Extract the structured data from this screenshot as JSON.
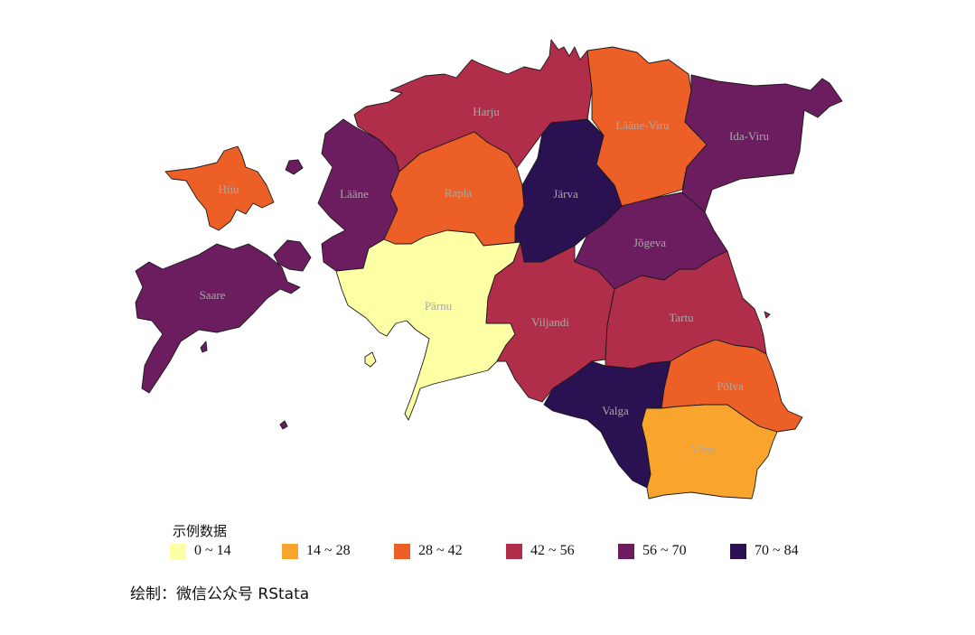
{
  "legend": {
    "title": "示例数据",
    "items": [
      {
        "label": "0 ~ 14",
        "color": "#FCFFA4"
      },
      {
        "label": "14 ~ 28",
        "color": "#F9A52D"
      },
      {
        "label": "28 ~ 42",
        "color": "#EC5F27"
      },
      {
        "label": "42 ~ 56",
        "color": "#B02E4A"
      },
      {
        "label": "56 ~ 70",
        "color": "#6C1D5F"
      },
      {
        "label": "70 ~ 84",
        "color": "#2A1151"
      }
    ]
  },
  "caption": "绘制：微信公众号 RStata",
  "counties": [
    {
      "name": "Harju",
      "class": "42 ~ 56",
      "color": "#B02E4A"
    },
    {
      "name": "Lääne-Viru",
      "class": "28 ~ 42",
      "color": "#EC5F27"
    },
    {
      "name": "Ida-Viru",
      "class": "56 ~ 70",
      "color": "#6C1D5F"
    },
    {
      "name": "Hiiu",
      "class": "28 ~ 42",
      "color": "#EC5F27"
    },
    {
      "name": "Lääne",
      "class": "56 ~ 70",
      "color": "#6C1D5F"
    },
    {
      "name": "Rapla",
      "class": "28 ~ 42",
      "color": "#EC5F27"
    },
    {
      "name": "Järva",
      "class": "70 ~ 84",
      "color": "#2A1151"
    },
    {
      "name": "Jõgeva",
      "class": "56 ~ 70",
      "color": "#6C1D5F"
    },
    {
      "name": "Saare",
      "class": "56 ~ 70",
      "color": "#6C1D5F"
    },
    {
      "name": "Pärnu",
      "class": "0 ~ 14",
      "color": "#FCFFA4"
    },
    {
      "name": "Viljandi",
      "class": "42 ~ 56",
      "color": "#B02E4A"
    },
    {
      "name": "Tartu",
      "class": "42 ~ 56",
      "color": "#B02E4A"
    },
    {
      "name": "Põlva",
      "class": "28 ~ 42",
      "color": "#EC5F27"
    },
    {
      "name": "Valga",
      "class": "70 ~ 84",
      "color": "#2A1151"
    },
    {
      "name": "Võru",
      "class": "14 ~ 28",
      "color": "#F9A52D"
    }
  ]
}
